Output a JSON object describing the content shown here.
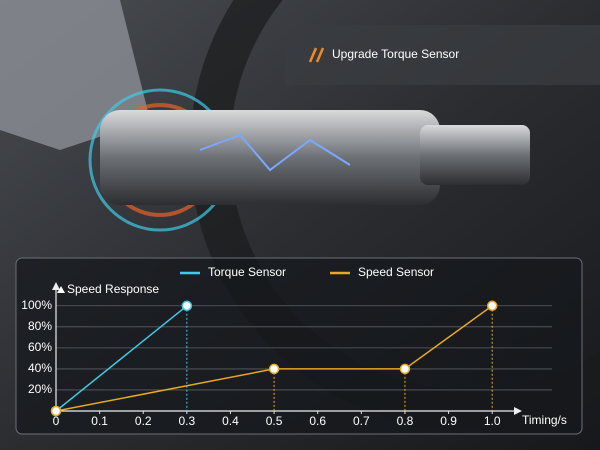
{
  "chart_data": {
    "type": "line",
    "title": "Upgrade Torque Sensor",
    "y_label": "Speed Response",
    "x_label": "Timing/s",
    "series": [
      {
        "name": "Torque Sensor",
        "color": "#3ecbe8",
        "x": [
          0,
          0.3
        ],
        "values": [
          0,
          100
        ]
      },
      {
        "name": "Speed Sensor",
        "color": "#e8a820",
        "x": [
          0,
          0.5,
          0.8,
          1.0
        ],
        "values": [
          0,
          40,
          40,
          100
        ]
      }
    ],
    "xlim": [
      0,
      1.05
    ],
    "ylim": [
      0,
      115
    ],
    "xticks": [
      0,
      0.1,
      0.2,
      0.3,
      0.4,
      0.5,
      0.6,
      0.7,
      0.8,
      0.9,
      {
        "value": 1,
        "label": "1.0"
      }
    ],
    "yticks": [
      {
        "value": 20,
        "label": "20%"
      },
      {
        "value": 40,
        "label": "40%"
      },
      {
        "value": 60,
        "label": "60%"
      },
      {
        "value": 80,
        "label": "80%"
      },
      {
        "value": 100,
        "label": "100%"
      }
    ],
    "grid": true
  }
}
